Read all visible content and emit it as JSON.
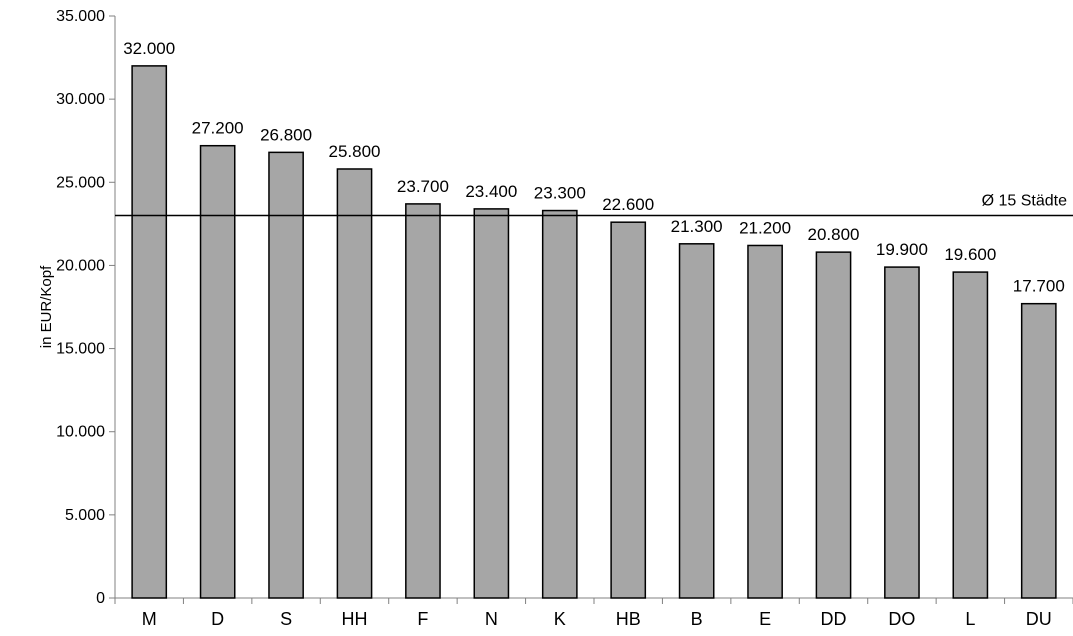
{
  "chart_data": {
    "type": "bar",
    "categories": [
      "M",
      "D",
      "S",
      "HH",
      "F",
      "N",
      "K",
      "HB",
      "B",
      "E",
      "DD",
      "DO",
      "L",
      "DU"
    ],
    "values": [
      32000,
      27200,
      26800,
      25800,
      23700,
      23400,
      23300,
      22600,
      21300,
      21200,
      20800,
      19900,
      19600,
      17700
    ],
    "value_labels": [
      "32.000",
      "27.200",
      "26.800",
      "25.800",
      "23.700",
      "23.400",
      "23.300",
      "22.600",
      "21.300",
      "21.200",
      "20.800",
      "19.900",
      "19.600",
      "17.700"
    ],
    "ylabel": "in EUR/Kopf",
    "xlabel": "",
    "ylim": [
      0,
      35000
    ],
    "y_ticks": [
      0,
      5000,
      10000,
      15000,
      20000,
      25000,
      30000,
      35000
    ],
    "y_tick_labels": [
      "0",
      "5.000",
      "10.000",
      "15.000",
      "20.000",
      "25.000",
      "30.000",
      "35.000"
    ],
    "reference_line": {
      "label": "Ø 15 Städte",
      "value": 23000
    },
    "grid": false,
    "legend": "none",
    "colors": {
      "bar_fill": "#a6a6a6",
      "bar_stroke": "#000000",
      "axis": "#808080",
      "reference_line": "#000000"
    }
  }
}
